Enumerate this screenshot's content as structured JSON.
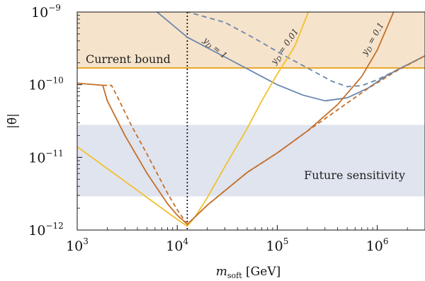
{
  "chart_data": {
    "type": "line",
    "x_scale": "log",
    "y_scale": "log",
    "xlim": [
      1000,
      3000000
    ],
    "ylim": [
      1e-12,
      1e-09
    ],
    "xlabel": {
      "main": "m",
      "sub": "soft",
      "unit": "[GeV]"
    },
    "ylabel": "|θ̄|",
    "x_ticks": [
      {
        "value": 1000,
        "base": "10",
        "exp": "3"
      },
      {
        "value": 10000,
        "base": "10",
        "exp": "4"
      },
      {
        "value": 100000,
        "base": "10",
        "exp": "5"
      },
      {
        "value": 1000000,
        "base": "10",
        "exp": "6"
      }
    ],
    "y_ticks": [
      {
        "value": 1e-12,
        "base": "10",
        "exp": "−12"
      },
      {
        "value": 1e-11,
        "base": "10",
        "exp": "−11"
      },
      {
        "value": 1e-10,
        "base": "10",
        "exp": "−10"
      },
      {
        "value": 1e-09,
        "base": "10",
        "exp": "−9"
      }
    ],
    "bands": [
      {
        "label": "Current bound",
        "y_range": [
          1.7e-10,
          1e-09
        ],
        "color": "#f6e3cb",
        "line_color": "#e8a92b",
        "boundary": 1.7e-10
      },
      {
        "label": "Future sensitivity",
        "y_range": [
          2.9e-12,
          2.8e-11
        ],
        "color": "#dfe4ef"
      }
    ],
    "vertical_line": {
      "x": 12600,
      "style": "dotted",
      "color": "#000000"
    },
    "series": [
      {
        "color": "#6b87ad",
        "dash": "",
        "points": [
          [
            5800,
            1.1e-09
          ],
          [
            12600,
            4.5e-10
          ],
          [
            30000,
            2.4e-10
          ],
          [
            60000,
            1.45e-10
          ],
          [
            100000,
            1e-10
          ],
          [
            180000,
            7.2e-11
          ],
          [
            300000,
            6e-11
          ],
          [
            500000,
            6.6e-11
          ],
          [
            800000,
            8.9e-11
          ],
          [
            1200000,
            1.3e-10
          ],
          [
            1800000,
            1.75e-10
          ],
          [
            3000000,
            2.5e-10
          ]
        ]
      },
      {
        "color": "#6b87ad",
        "dash": "7,5",
        "points": [
          [
            10000,
            1.1e-09
          ],
          [
            30000,
            7.2e-10
          ],
          [
            60000,
            4.3e-10
          ],
          [
            110000,
            2.65e-10
          ],
          [
            200000,
            1.7e-10
          ],
          [
            350000,
            1.12e-10
          ],
          [
            500000,
            9.4e-11
          ],
          [
            700000,
            9.7e-11
          ],
          [
            1000000,
            1.17e-10
          ],
          [
            1500000,
            1.55e-10
          ],
          [
            2200000,
            2e-10
          ],
          [
            3000000,
            2.5e-10
          ]
        ]
      },
      {
        "color": "#f2c12e",
        "dash": "",
        "points": [
          [
            1000,
            1.4e-11
          ],
          [
            2000,
            7e-12
          ],
          [
            5000,
            2.8e-12
          ],
          [
            10000,
            1.4e-12
          ],
          [
            12600,
            1.13e-12
          ],
          [
            15000,
            1.5e-12
          ],
          [
            20000,
            2.8e-12
          ],
          [
            30000,
            7.5e-12
          ],
          [
            50000,
            2.5e-11
          ],
          [
            70000,
            6e-11
          ],
          [
            100000,
            1.4e-10
          ],
          [
            150000,
            3.4e-10
          ],
          [
            210000,
            1.1e-09
          ]
        ]
      },
      {
        "color": "#c5702a",
        "dash": "",
        "points": [
          [
            1000,
            1.05e-10
          ],
          [
            1800,
            9.8e-11
          ],
          [
            2000,
            6e-11
          ],
          [
            3000,
            2e-11
          ],
          [
            5000,
            6e-12
          ],
          [
            8000,
            2.3e-12
          ],
          [
            10000,
            1.6e-12
          ],
          [
            12600,
            1.2e-12
          ],
          [
            20000,
            2.2e-12
          ],
          [
            50000,
            6.2e-12
          ],
          [
            100000,
            1.15e-11
          ],
          [
            200000,
            2.3e-11
          ],
          [
            400000,
            5.3e-11
          ],
          [
            700000,
            1.3e-10
          ],
          [
            1000000,
            3e-10
          ],
          [
            1500000,
            1.1e-09
          ]
        ]
      },
      {
        "color": "#c5702a",
        "dash": "6,4",
        "points": [
          [
            1800,
            9.8e-11
          ],
          [
            2200,
            9.8e-11
          ],
          [
            2500,
            7e-11
          ],
          [
            3500,
            2.7e-11
          ],
          [
            5000,
            1.1e-11
          ],
          [
            8000,
            3.2e-12
          ],
          [
            10000,
            1.9e-12
          ],
          [
            12600,
            1.2e-12
          ],
          [
            20000,
            2.2e-12
          ],
          [
            50000,
            6.2e-12
          ],
          [
            100000,
            1.15e-11
          ],
          [
            200000,
            2.3e-11
          ],
          [
            400000,
            4.5e-11
          ],
          [
            800000,
            8.8e-11
          ],
          [
            1500000,
            1.5e-10
          ],
          [
            3000000,
            2.5e-10
          ]
        ]
      }
    ],
    "annotations": [
      {
        "text": "y_D = 1",
        "x": 23000,
        "y": 3e-10,
        "angle": 40,
        "color": "#333333"
      },
      {
        "text": "y_D = 0.01",
        "x": 125000,
        "y": 3.2e-10,
        "angle": -55,
        "color": "#333333"
      },
      {
        "text": "y_D = 0.1",
        "x": 950000,
        "y": 4.1e-10,
        "angle": -60,
        "color": "#333333"
      }
    ]
  }
}
